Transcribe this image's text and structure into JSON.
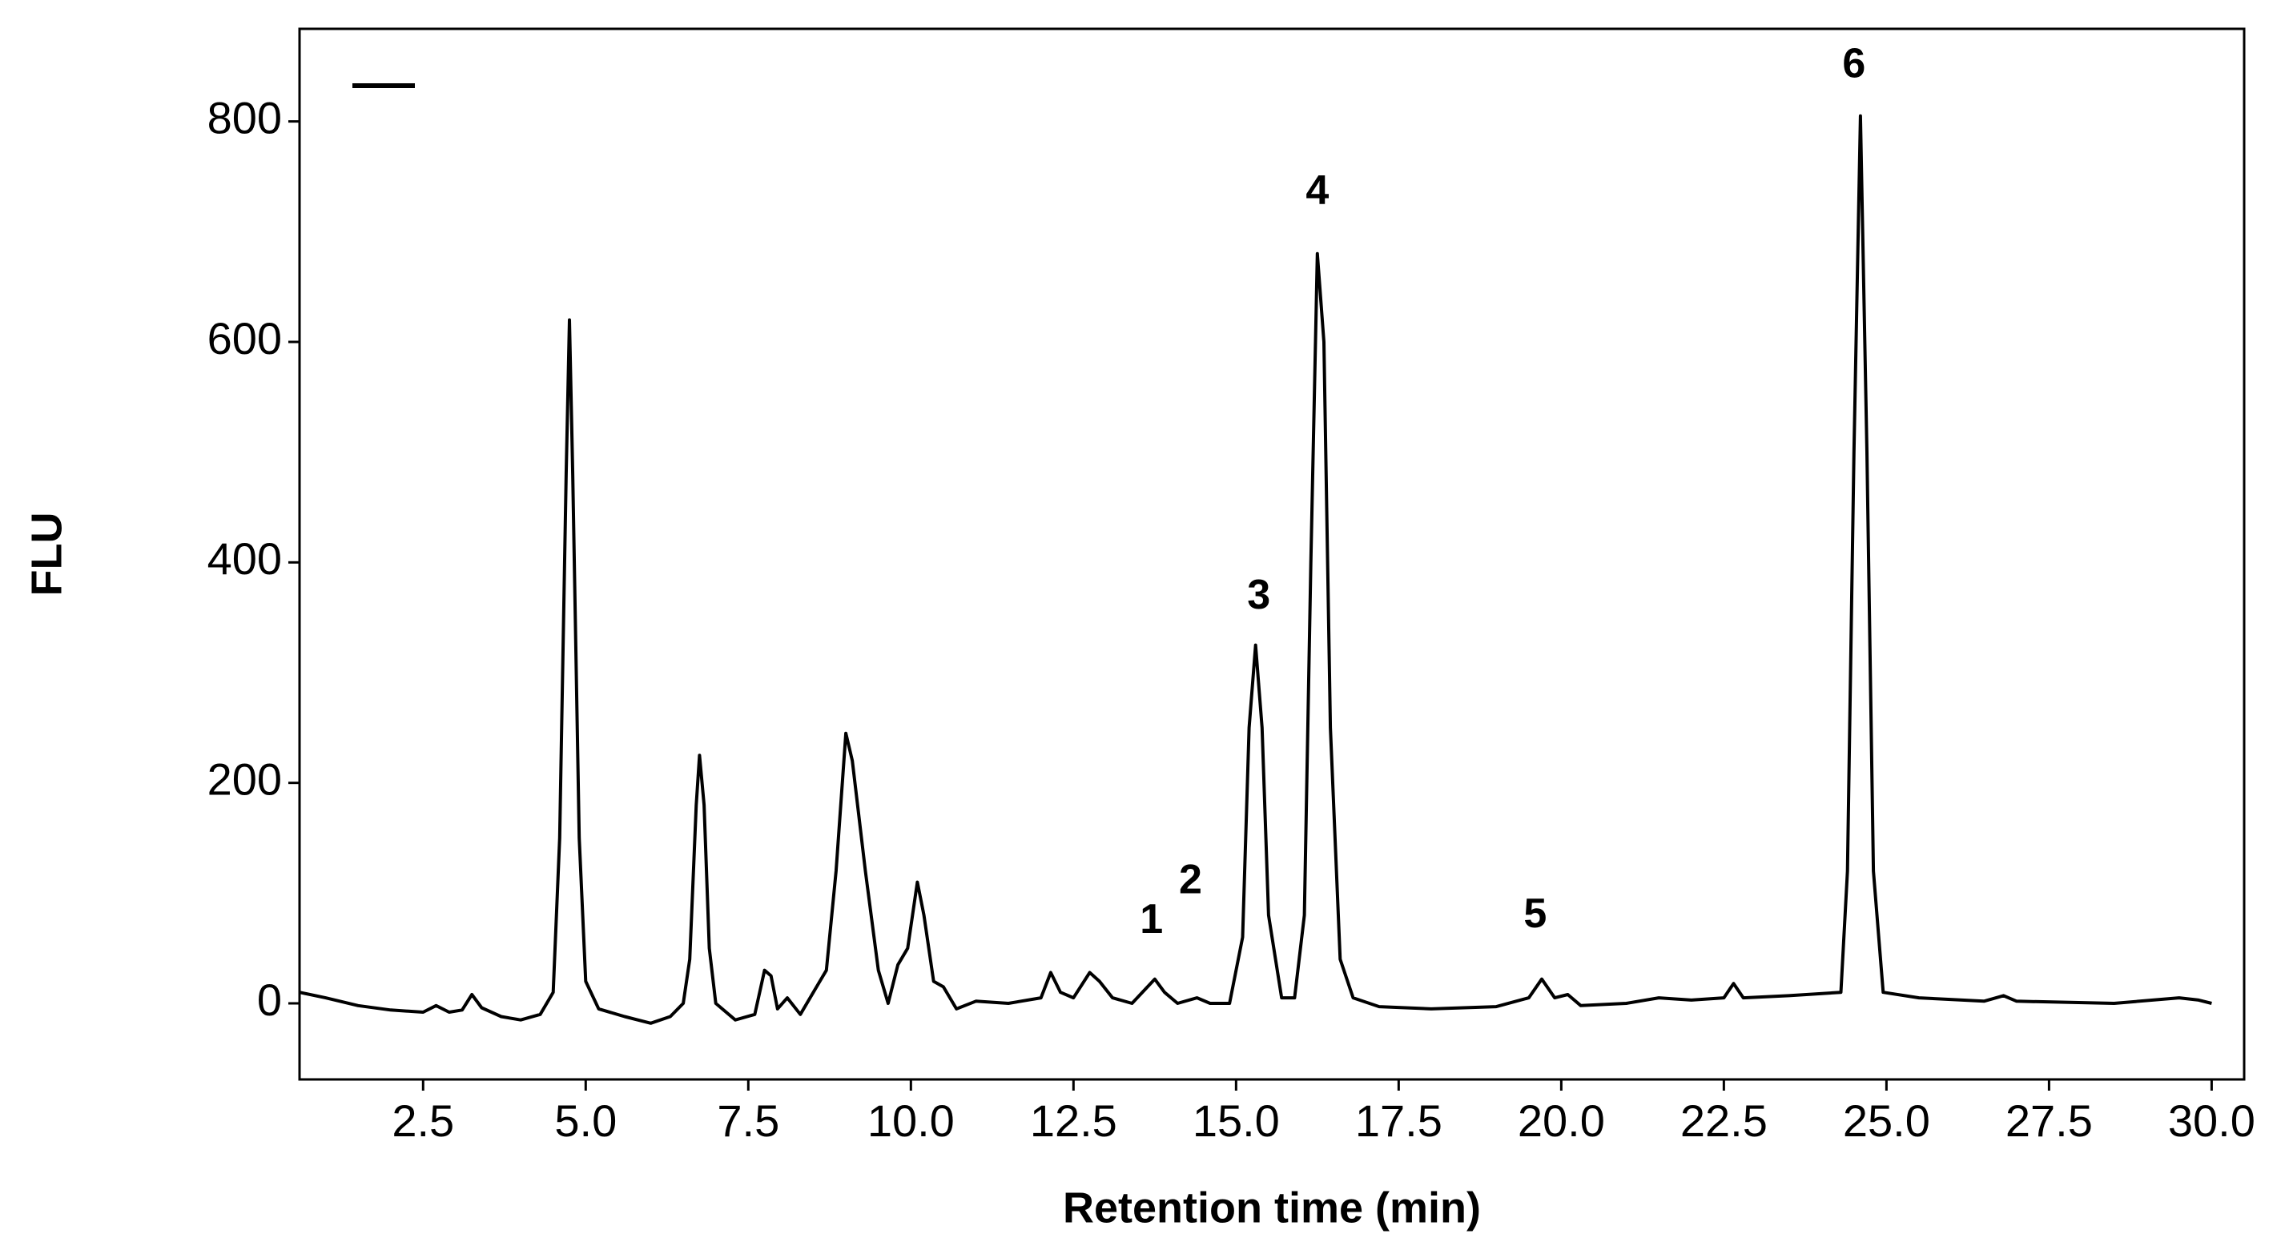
{
  "chart_data": {
    "type": "line",
    "xlabel": "Retention time (min)",
    "ylabel": "FLU",
    "color": "#000000",
    "xlim": [
      0.6,
      30.5
    ],
    "ylim": [
      -69,
      884
    ],
    "xticks": [
      2.5,
      {
        "value": 5,
        "label": "5.0"
      },
      7.5,
      {
        "value": 10,
        "label": "10.0"
      },
      12.5,
      {
        "value": 15,
        "label": "15.0"
      },
      17.5,
      {
        "value": 20,
        "label": "20.0"
      },
      22.5,
      {
        "value": 25,
        "label": "25.0"
      },
      27.5,
      {
        "value": 30,
        "label": "30.0"
      }
    ],
    "yticks": [
      0,
      200,
      400,
      600,
      800
    ],
    "x": [
      0.6,
      1.0,
      1.5,
      2.0,
      2.5,
      2.7,
      2.9,
      3.1,
      3.25,
      3.4,
      3.7,
      4.0,
      4.3,
      4.5,
      4.6,
      4.7,
      4.75,
      4.8,
      4.9,
      5.0,
      5.2,
      5.6,
      6.0,
      6.3,
      6.5,
      6.6,
      6.7,
      6.75,
      6.82,
      6.9,
      7.0,
      7.3,
      7.6,
      7.75,
      7.85,
      7.95,
      8.1,
      8.3,
      8.6,
      8.7,
      8.85,
      9.0,
      9.1,
      9.3,
      9.5,
      9.65,
      9.8,
      9.95,
      10.1,
      10.2,
      10.35,
      10.5,
      10.7,
      11.0,
      11.5,
      12.0,
      12.15,
      12.3,
      12.5,
      12.75,
      12.9,
      13.1,
      13.4,
      13.75,
      13.9,
      14.1,
      14.4,
      14.6,
      14.9,
      15.1,
      15.2,
      15.3,
      15.4,
      15.5,
      15.7,
      15.9,
      16.05,
      16.15,
      16.25,
      16.35,
      16.45,
      16.6,
      16.8,
      17.2,
      18.0,
      19.0,
      19.5,
      19.7,
      19.9,
      20.1,
      20.3,
      21.0,
      21.5,
      22.0,
      22.5,
      22.65,
      22.8,
      23.5,
      24.3,
      24.4,
      24.5,
      24.6,
      24.7,
      24.8,
      24.95,
      25.5,
      26.5,
      26.8,
      27.0,
      28.5,
      29.5,
      29.8,
      30.0
    ],
    "values": [
      10,
      5,
      -2,
      -6,
      -8,
      -2,
      -8,
      -6,
      8,
      -4,
      -12,
      -15,
      -10,
      10,
      150,
      480,
      620,
      480,
      150,
      20,
      -5,
      -12,
      -18,
      -12,
      0,
      40,
      180,
      225,
      180,
      50,
      0,
      -15,
      -10,
      30,
      25,
      -5,
      5,
      -10,
      20,
      30,
      120,
      245,
      220,
      120,
      30,
      0,
      35,
      50,
      110,
      80,
      20,
      15,
      -5,
      2,
      0,
      5,
      28,
      10,
      5,
      28,
      20,
      5,
      0,
      22,
      10,
      0,
      5,
      0,
      0,
      60,
      250,
      325,
      250,
      80,
      5,
      5,
      80,
      400,
      680,
      600,
      250,
      40,
      5,
      -3,
      -5,
      -3,
      5,
      22,
      5,
      8,
      -2,
      0,
      5,
      3,
      5,
      18,
      5,
      7,
      10,
      120,
      500,
      805,
      500,
      120,
      10,
      5,
      2,
      7,
      2,
      0,
      5,
      3,
      0
    ],
    "annotations": [
      {
        "text": "1",
        "x": 13.7,
        "y": 74
      },
      {
        "text": "2",
        "x": 14.3,
        "y": 110
      },
      {
        "text": "3",
        "x": 15.35,
        "y": 368
      },
      {
        "text": "4",
        "x": 16.25,
        "y": 735
      },
      {
        "text": "5",
        "x": 19.6,
        "y": 79
      },
      {
        "text": "6",
        "x": 24.5,
        "y": 850
      }
    ]
  }
}
